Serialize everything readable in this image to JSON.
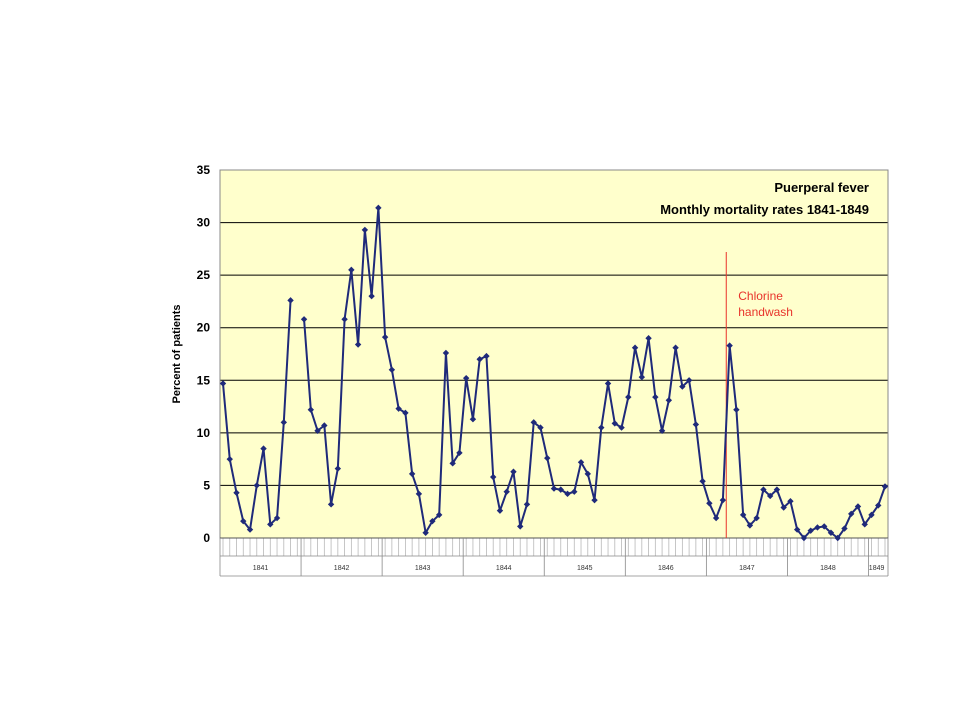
{
  "chart_data": {
    "type": "line",
    "title": "Puerperal fever",
    "subtitle": "Monthly mortality rates 1841-1849",
    "xlabel": "",
    "ylabel": "Percent of patients",
    "ylim": [
      0,
      35
    ],
    "yticks": [
      0,
      5,
      10,
      15,
      20,
      25,
      30,
      35
    ],
    "grid": true,
    "legend": "none",
    "background_color": "#ffffcc",
    "line_color": "#1f2a7a",
    "gridline_color": "#000000",
    "annotation_color": "#e8332b",
    "annotation": {
      "line1": "Chlorine",
      "line2": "handwash",
      "month_index": 74
    },
    "years": [
      {
        "label": "1841",
        "start": 0,
        "end": 10
      },
      {
        "label": "1842",
        "start": 10,
        "end": 20
      },
      {
        "label": "1843",
        "start": 20,
        "end": 30
      },
      {
        "label": "1844",
        "start": 30,
        "end": 40
      },
      {
        "label": "1845",
        "start": 40,
        "end": 50
      },
      {
        "label": "1846",
        "start": 50,
        "end": 60
      },
      {
        "label": "1847",
        "start": 60,
        "end": 70
      },
      {
        "label": "1848",
        "start": 70,
        "end": 80
      },
      {
        "label": "1849",
        "start": 80,
        "end": 82
      }
    ],
    "series": [
      {
        "values": [
          14.7,
          7.5,
          4.3,
          1.6,
          0.8,
          5.0,
          8.5,
          1.3,
          1.9,
          11.0,
          22.6,
          null,
          20.8,
          12.2,
          10.2,
          10.7,
          3.2,
          6.6,
          20.8,
          25.5,
          18.4,
          29.3,
          23.0,
          31.4,
          19.1,
          16.0,
          12.3,
          11.9,
          6.1,
          4.2,
          0.5,
          1.6,
          2.2,
          17.6,
          7.1,
          8.1,
          15.2,
          11.3,
          17.0,
          17.3,
          5.8,
          2.6,
          4.4,
          6.3,
          1.1,
          3.2,
          11.0,
          10.5,
          7.6,
          4.7,
          4.6,
          4.2,
          4.4,
          7.2,
          6.1,
          3.6,
          10.5,
          14.7,
          10.9,
          10.5,
          13.4,
          18.1,
          15.3,
          19.0,
          13.4,
          10.2,
          13.1,
          18.1,
          14.4,
          15.0,
          10.8,
          5.4,
          3.3,
          1.9,
          3.6,
          18.3,
          12.2,
          2.2,
          1.2,
          1.9,
          4.6,
          4.0,
          4.6,
          2.9,
          3.5,
          0.8,
          0.0,
          0.7,
          1.0,
          1.1,
          0.5,
          0.0,
          0.9,
          2.3,
          3.0,
          1.3,
          2.2,
          3.1,
          4.9
        ]
      }
    ]
  }
}
